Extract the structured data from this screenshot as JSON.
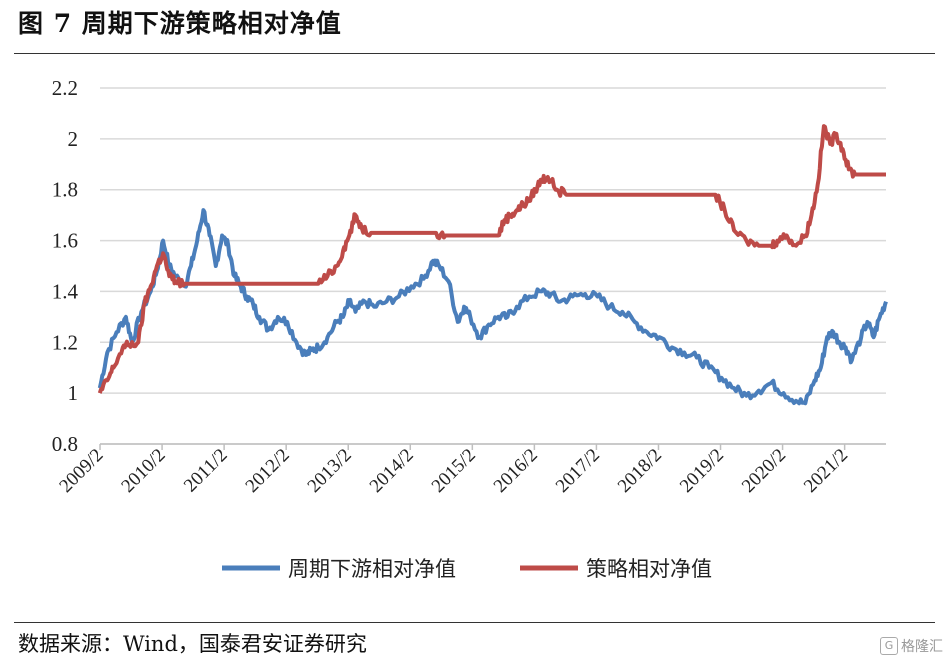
{
  "header": {
    "title": "图 7  周期下游策略相对净值"
  },
  "footer": {
    "source": "数据来源：Wind，国泰君安证券研究",
    "watermark": "格隆汇"
  },
  "colors": {
    "series1": "#4a7ebb",
    "series2": "#be4b48",
    "grid": "#d9d9d9",
    "axis": "#bfbfbf"
  },
  "chart_data": {
    "type": "line",
    "title": "周期下游策略相对净值",
    "xlabel": "",
    "ylabel": "",
    "ylim": [
      0.8,
      2.2
    ],
    "yticks": [
      "0.8",
      "1",
      "1.2",
      "1.4",
      "1.6",
      "1.8",
      "2",
      "2.2"
    ],
    "xlim": [
      2009.083,
      2021.75
    ],
    "xticks": [
      "2009/2",
      "2010/2",
      "2011/2",
      "2012/2",
      "2013/2",
      "2014/2",
      "2015/2",
      "2016/2",
      "2017/2",
      "2018/2",
      "2019/2",
      "2020/2",
      "2021/2"
    ],
    "grid": true,
    "legend_position": "bottom",
    "series": [
      {
        "name": "周期下游相对净值",
        "color": "#4a7ebb",
        "x": [
          2009.08,
          2009.2,
          2009.35,
          2009.5,
          2009.6,
          2009.75,
          2009.9,
          2010.0,
          2010.1,
          2010.2,
          2010.3,
          2010.45,
          2010.55,
          2010.65,
          2010.75,
          2010.85,
          2010.95,
          2011.05,
          2011.15,
          2011.25,
          2011.35,
          2011.45,
          2011.55,
          2011.65,
          2011.8,
          2011.95,
          2012.1,
          2012.25,
          2012.4,
          2012.5,
          2012.6,
          2012.75,
          2012.9,
          2013.0,
          2013.1,
          2013.2,
          2013.35,
          2013.5,
          2013.7,
          2013.9,
          2014.1,
          2014.3,
          2014.45,
          2014.55,
          2014.7,
          2014.85,
          2014.95,
          2015.05,
          2015.2,
          2015.35,
          2015.5,
          2015.65,
          2015.8,
          2016.0,
          2016.2,
          2016.35,
          2016.5,
          2016.7,
          2016.9,
          2017.1,
          2017.3,
          2017.5,
          2017.7,
          2017.9,
          2018.1,
          2018.3,
          2018.5,
          2018.7,
          2018.9,
          2019.1,
          2019.3,
          2019.5,
          2019.7,
          2019.9,
          2020.1,
          2020.3,
          2020.45,
          2020.6,
          2020.7,
          2020.8,
          2020.9,
          2021.0,
          2021.1,
          2021.2,
          2021.35,
          2021.45,
          2021.55,
          2021.65,
          2021.75
        ],
        "y": [
          1.02,
          1.16,
          1.24,
          1.3,
          1.2,
          1.32,
          1.4,
          1.48,
          1.6,
          1.5,
          1.46,
          1.42,
          1.5,
          1.6,
          1.72,
          1.62,
          1.5,
          1.62,
          1.58,
          1.46,
          1.42,
          1.38,
          1.35,
          1.3,
          1.25,
          1.3,
          1.28,
          1.2,
          1.15,
          1.17,
          1.18,
          1.22,
          1.28,
          1.3,
          1.36,
          1.32,
          1.36,
          1.34,
          1.36,
          1.38,
          1.42,
          1.45,
          1.52,
          1.5,
          1.44,
          1.28,
          1.34,
          1.3,
          1.22,
          1.27,
          1.3,
          1.3,
          1.34,
          1.38,
          1.4,
          1.39,
          1.36,
          1.38,
          1.39,
          1.38,
          1.34,
          1.32,
          1.28,
          1.24,
          1.22,
          1.18,
          1.16,
          1.14,
          1.1,
          1.06,
          1.02,
          0.99,
          1.01,
          1.04,
          1.0,
          0.97,
          0.96,
          1.05,
          1.1,
          1.22,
          1.24,
          1.2,
          1.18,
          1.13,
          1.22,
          1.28,
          1.22,
          1.3,
          1.36
        ]
      },
      {
        "name": "策略相对净值",
        "color": "#be4b48",
        "x": [
          2009.08,
          2009.2,
          2009.3,
          2009.45,
          2009.55,
          2009.7,
          2009.8,
          2009.9,
          2010.0,
          2010.1,
          2010.2,
          2010.3,
          2010.45,
          2010.6,
          2010.75,
          2011.0,
          2011.5,
          2012.0,
          2012.45,
          2012.6,
          2012.75,
          2012.9,
          2013.0,
          2013.1,
          2013.2,
          2013.3,
          2013.45,
          2013.55,
          2014.0,
          2014.5,
          2014.65,
          2015.0,
          2015.5,
          2015.6,
          2015.7,
          2015.8,
          2015.9,
          2016.0,
          2016.1,
          2016.2,
          2016.3,
          2016.45,
          2016.6,
          2016.75,
          2017.0,
          2017.5,
          2018.0,
          2018.5,
          2019.0,
          2019.15,
          2019.3,
          2019.5,
          2019.7,
          2019.9,
          2020.0,
          2020.15,
          2020.3,
          2020.45,
          2020.55,
          2020.65,
          2020.75,
          2020.85,
          2020.95,
          2021.05,
          2021.15,
          2021.25,
          2021.4,
          2021.55,
          2021.75
        ],
        "y": [
          1.0,
          1.05,
          1.1,
          1.18,
          1.19,
          1.2,
          1.35,
          1.42,
          1.5,
          1.55,
          1.46,
          1.44,
          1.43,
          1.43,
          1.43,
          1.43,
          1.43,
          1.43,
          1.43,
          1.43,
          1.46,
          1.5,
          1.56,
          1.62,
          1.7,
          1.65,
          1.63,
          1.63,
          1.63,
          1.63,
          1.62,
          1.62,
          1.62,
          1.68,
          1.7,
          1.72,
          1.74,
          1.76,
          1.8,
          1.84,
          1.85,
          1.8,
          1.78,
          1.78,
          1.78,
          1.78,
          1.78,
          1.78,
          1.78,
          1.72,
          1.64,
          1.6,
          1.58,
          1.58,
          1.6,
          1.62,
          1.58,
          1.62,
          1.7,
          1.82,
          2.05,
          1.98,
          2.02,
          1.96,
          1.88,
          1.86,
          1.86,
          1.86,
          1.86
        ]
      }
    ]
  }
}
